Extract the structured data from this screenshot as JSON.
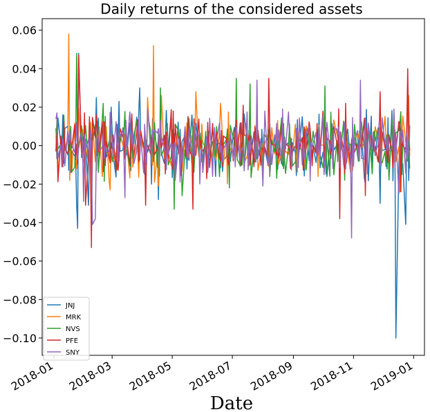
{
  "chart_data": {
    "type": "line",
    "title": "Daily returns of the considered assets",
    "xlabel": "Date",
    "ylabel": "",
    "xlim": [
      "2017-12-20",
      "2019-01-12"
    ],
    "ylim": [
      -0.109,
      0.066
    ],
    "yticks": [
      -0.1,
      -0.08,
      -0.06,
      -0.04,
      -0.02,
      0.0,
      0.02,
      0.04,
      0.06
    ],
    "ytick_labels": [
      "−0.10",
      "−0.08",
      "−0.06",
      "−0.04",
      "−0.02",
      "0.00",
      "0.02",
      "0.04",
      "0.06"
    ],
    "xticks": [
      "2018-01-01",
      "2018-03-01",
      "2018-05-01",
      "2018-07-01",
      "2018-09-01",
      "2018-11-01",
      "2019-01-01"
    ],
    "xtick_labels": [
      "2018-01",
      "2018-03",
      "2018-05",
      "2018-07",
      "2018-09",
      "2018-11",
      "2019-01"
    ],
    "grid": false,
    "legend_position": "lower-left",
    "date_range": [
      "2018-01-03",
      "2018-12-28"
    ],
    "series": [
      {
        "name": "JNJ",
        "color": "#1f77b4",
        "points": [
          [
            "2018-01-03",
            0.009
          ],
          [
            "2018-01-10",
            0.016
          ],
          [
            "2018-01-18",
            -0.014
          ],
          [
            "2018-01-24",
            -0.031
          ],
          [
            "2018-01-25",
            -0.043
          ],
          [
            "2018-01-26",
            0.048
          ],
          [
            "2018-02-05",
            -0.031
          ],
          [
            "2018-02-08",
            -0.046
          ],
          [
            "2018-02-13",
            0.025
          ],
          [
            "2018-02-21",
            -0.012
          ],
          [
            "2018-02-28",
            0.02
          ],
          [
            "2018-03-08",
            0.023
          ],
          [
            "2018-03-20",
            -0.013
          ],
          [
            "2018-03-29",
            0.03
          ],
          [
            "2018-04-10",
            -0.02
          ],
          [
            "2018-04-17",
            -0.028
          ],
          [
            "2018-05-21",
            0.016
          ],
          [
            "2018-07-17",
            -0.01
          ],
          [
            "2018-08-08",
            0.011
          ],
          [
            "2018-10-05",
            -0.016
          ],
          [
            "2018-11-13",
            -0.02
          ],
          [
            "2018-11-28",
            -0.03
          ],
          [
            "2018-12-14",
            -0.1
          ],
          [
            "2018-12-17",
            -0.01
          ],
          [
            "2018-12-24",
            -0.041
          ],
          [
            "2018-12-26",
            0.023
          ]
        ]
      },
      {
        "name": "MRK",
        "color": "#ff7f0e",
        "points": [
          [
            "2018-01-16",
            0.058
          ],
          [
            "2018-01-19",
            -0.014
          ],
          [
            "2018-02-27",
            -0.023
          ],
          [
            "2018-04-06",
            0.025
          ],
          [
            "2018-04-12",
            0.052
          ],
          [
            "2018-04-13",
            -0.019
          ],
          [
            "2018-04-17",
            -0.021
          ],
          [
            "2018-04-20",
            0.026
          ],
          [
            "2018-05-25",
            0.028
          ],
          [
            "2018-06-19",
            0.022
          ],
          [
            "2018-06-20",
            0.014
          ],
          [
            "2018-10-29",
            -0.014
          ],
          [
            "2018-12-18",
            -0.024
          ],
          [
            "2018-12-27",
            0.026
          ]
        ]
      },
      {
        "name": "NVS",
        "color": "#2ca02c",
        "points": [
          [
            "2018-01-24",
            0.048
          ],
          [
            "2018-02-20",
            0.022
          ],
          [
            "2018-04-19",
            0.03
          ],
          [
            "2018-05-03",
            -0.033
          ],
          [
            "2018-05-11",
            -0.026
          ],
          [
            "2018-06-28",
            -0.022
          ],
          [
            "2018-07-05",
            0.035
          ],
          [
            "2018-07-19",
            0.032
          ],
          [
            "2018-08-15",
            -0.017
          ],
          [
            "2018-10-03",
            0.031
          ],
          [
            "2018-10-23",
            -0.018
          ],
          [
            "2018-12-26",
            -0.008
          ]
        ]
      },
      {
        "name": "PFE",
        "color": "#d62728",
        "points": [
          [
            "2018-01-03",
            -0.003
          ],
          [
            "2018-01-10",
            -0.011
          ],
          [
            "2018-01-26",
            0.047
          ],
          [
            "2018-02-02",
            -0.031
          ],
          [
            "2018-02-06",
            0.015
          ],
          [
            "2018-02-08",
            -0.053
          ],
          [
            "2018-02-13",
            0.016
          ],
          [
            "2018-04-04",
            -0.031
          ],
          [
            "2018-05-22",
            -0.033
          ],
          [
            "2018-07-12",
            0.021
          ],
          [
            "2018-08-07",
            0.035
          ],
          [
            "2018-10-18",
            -0.038
          ],
          [
            "2018-10-24",
            0.022
          ],
          [
            "2018-11-13",
            -0.026
          ],
          [
            "2018-11-28",
            0.028
          ],
          [
            "2018-12-19",
            -0.024
          ],
          [
            "2018-12-26",
            0.04
          ],
          [
            "2018-12-27",
            0.004
          ]
        ]
      },
      {
        "name": "SNY",
        "color": "#9467bd",
        "points": [
          [
            "2018-01-04",
            0.017
          ],
          [
            "2018-01-09",
            -0.011
          ],
          [
            "2018-01-31",
            -0.029
          ],
          [
            "2018-02-09",
            -0.041
          ],
          [
            "2018-02-12",
            -0.038
          ],
          [
            "2018-03-14",
            -0.027
          ],
          [
            "2018-04-02",
            -0.014
          ],
          [
            "2018-04-18",
            -0.011
          ],
          [
            "2018-06-07",
            -0.009
          ],
          [
            "2018-07-26",
            0.034
          ],
          [
            "2018-08-01",
            -0.021
          ],
          [
            "2018-08-21",
            0.019
          ],
          [
            "2018-10-30",
            -0.048
          ],
          [
            "2018-11-08",
            0.034
          ],
          [
            "2018-12-12",
            0.019
          ],
          [
            "2018-12-17",
            -0.025
          ],
          [
            "2018-12-27",
            -0.002
          ]
        ]
      }
    ]
  }
}
